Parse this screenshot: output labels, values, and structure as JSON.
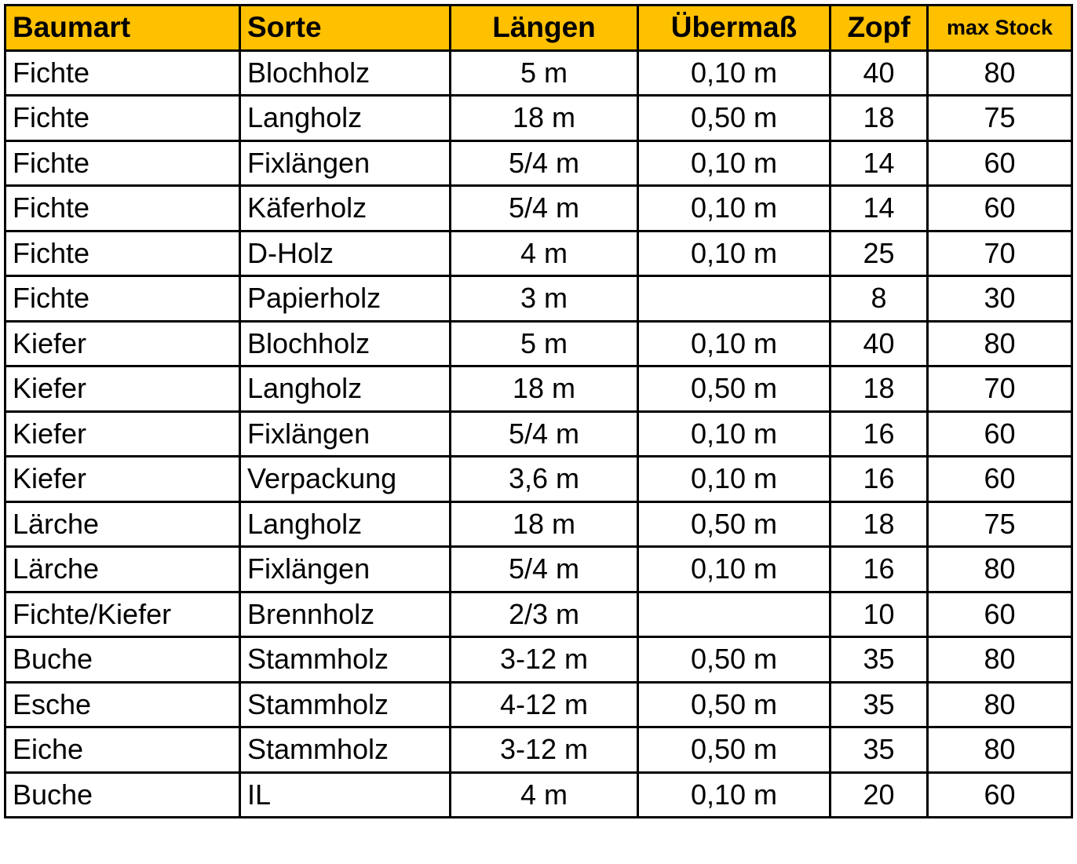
{
  "header_color": "#FFC000",
  "columns": [
    "Baumart",
    "Sorte",
    "Längen",
    "Übermaß",
    "Zopf",
    "max Stock"
  ],
  "rows": [
    [
      "Fichte",
      "Blochholz",
      "5 m",
      "0,10 m",
      "40",
      "80"
    ],
    [
      "Fichte",
      "Langholz",
      "18 m",
      "0,50 m",
      "18",
      "75"
    ],
    [
      "Fichte",
      "Fixlängen",
      "5/4 m",
      "0,10 m",
      "14",
      "60"
    ],
    [
      "Fichte",
      "Käferholz",
      "5/4 m",
      "0,10 m",
      "14",
      "60"
    ],
    [
      "Fichte",
      "D-Holz",
      "4 m",
      "0,10 m",
      "25",
      "70"
    ],
    [
      "Fichte",
      "Papierholz",
      "3 m",
      "",
      "8",
      "30"
    ],
    [
      "Kiefer",
      "Blochholz",
      "5 m",
      "0,10 m",
      "40",
      "80"
    ],
    [
      "Kiefer",
      "Langholz",
      "18 m",
      "0,50 m",
      "18",
      "70"
    ],
    [
      "Kiefer",
      "Fixlängen",
      "5/4 m",
      "0,10 m",
      "16",
      "60"
    ],
    [
      "Kiefer",
      "Verpackung",
      "3,6 m",
      "0,10 m",
      "16",
      "60"
    ],
    [
      "Lärche",
      "Langholz",
      "18 m",
      "0,50 m",
      "18",
      "75"
    ],
    [
      "Lärche",
      "Fixlängen",
      "5/4 m",
      "0,10 m",
      "16",
      "80"
    ],
    [
      "Fichte/Kiefer",
      "Brennholz",
      "2/3 m",
      "",
      "10",
      "60"
    ],
    [
      "Buche",
      "Stammholz",
      "3-12 m",
      "0,50 m",
      "35",
      "80"
    ],
    [
      "Esche",
      "Stammholz",
      "4-12 m",
      "0,50 m",
      "35",
      "80"
    ],
    [
      "Eiche",
      "Stammholz",
      "3-12 m",
      "0,50 m",
      "35",
      "80"
    ],
    [
      "Buche",
      "IL",
      "4 m",
      "0,10 m",
      "20",
      "60"
    ]
  ]
}
